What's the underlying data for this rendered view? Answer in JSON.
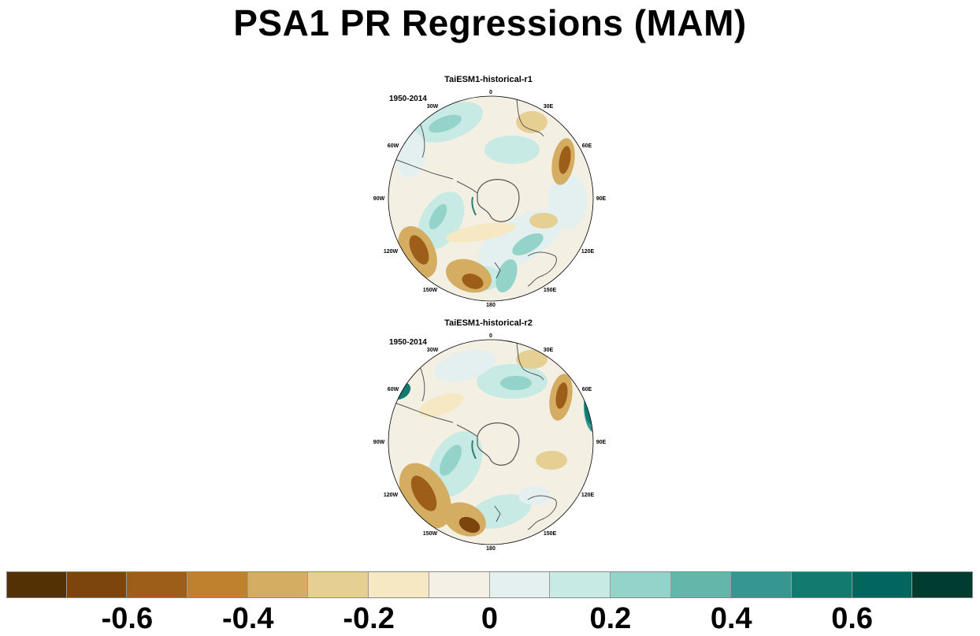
{
  "title": "PSA1 PR Regressions (MAM)",
  "panels": [
    {
      "title": "TaiESM1-historical-r1",
      "period": "1950-2014"
    },
    {
      "title": "TaiESM1-historical-r2",
      "period": "1950-2014"
    }
  ],
  "longitude_labels": {
    "lon_0": "0",
    "lon_30e": "30E",
    "lon_60e": "60E",
    "lon_90e": "90E",
    "lon_120e": "120E",
    "lon_150e": "150E",
    "lon_180": "180",
    "lon_150w": "150W",
    "lon_120w": "120W",
    "lon_90w": "90W",
    "lon_60w": "60W",
    "lon_30w": "30W"
  },
  "colorbar": {
    "colors": [
      "#543005",
      "#7b450d",
      "#9c5e18",
      "#bf812d",
      "#d4ac62",
      "#e5cf93",
      "#f5e8c3",
      "#f5f0e6",
      "#e3f0ef",
      "#c7eae5",
      "#94d3c9",
      "#62b6aa",
      "#35978f",
      "#137a70",
      "#01665e",
      "#003c30"
    ],
    "tick_values": [
      "-0.6",
      "-0.4",
      "-0.2",
      "0",
      "0.2",
      "0.4",
      "0.6"
    ],
    "tick_boundary_index": [
      2,
      4,
      6,
      8,
      10,
      12,
      14
    ]
  }
}
